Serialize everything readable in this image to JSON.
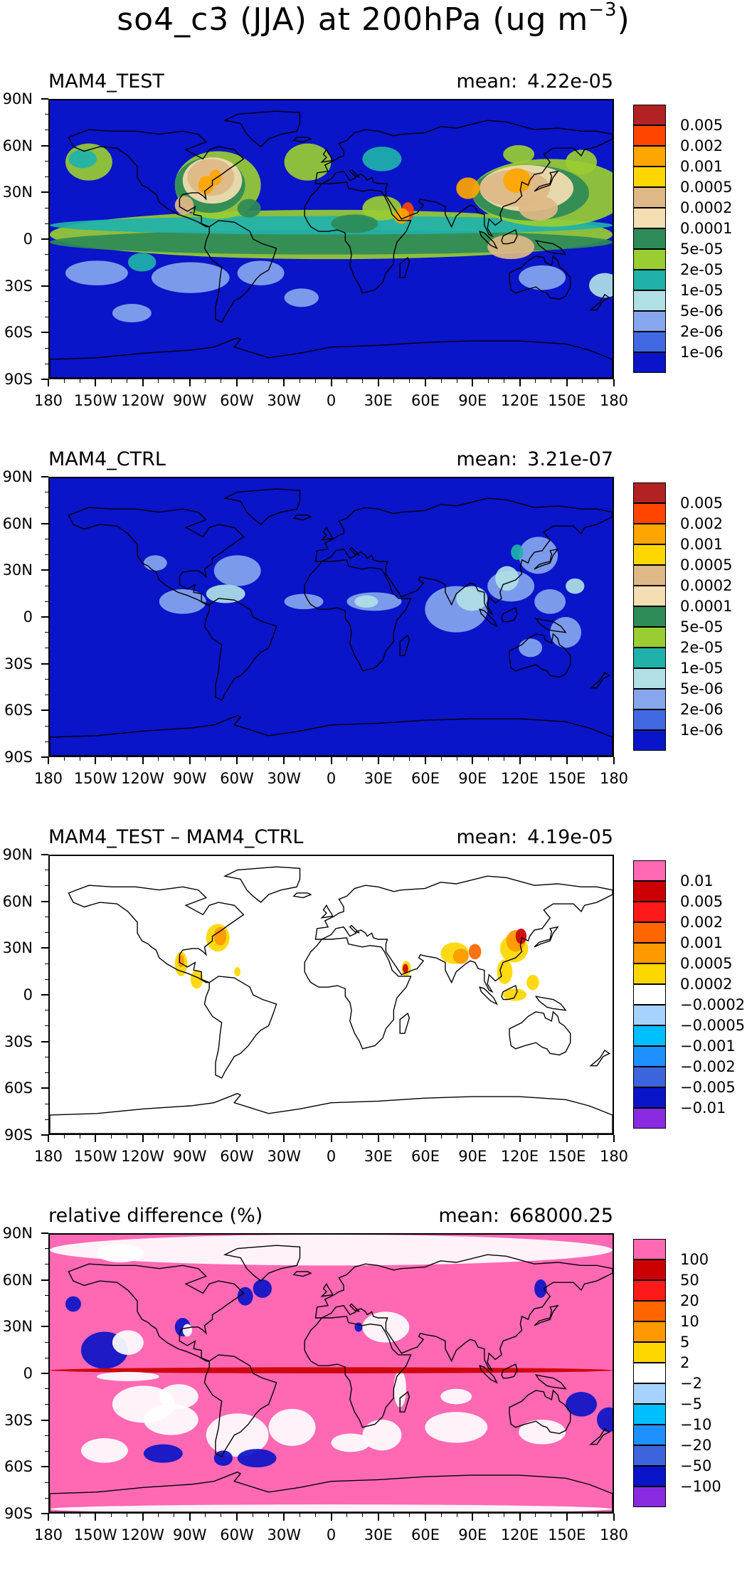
{
  "title": {
    "text": "so4_c3 (JJA) at 200hPa (ug m",
    "superscript": "−3",
    "close": ")"
  },
  "axis_ticks": {
    "x": [
      "180",
      "150W",
      "120W",
      "90W",
      "60W",
      "30W",
      "0",
      "30E",
      "60E",
      "90E",
      "120E",
      "150E",
      "180"
    ],
    "y": [
      "90N",
      "60N",
      "30N",
      "0",
      "30S",
      "60S",
      "90S"
    ]
  },
  "panels": [
    {
      "name": "MAM4_TEST",
      "mean_label": "mean:",
      "mean_value": "4.22e-05",
      "field": "test",
      "background": "#0a14c8",
      "legend": {
        "colors": [
          "#b22222",
          "#ff4500",
          "#ffa500",
          "#ffd700",
          "#deb887",
          "#f5deb3",
          "#2e8b57",
          "#9acd32",
          "#20b2aa",
          "#b0e0e6",
          "#87a6ee",
          "#4169e1",
          "#0a14c8"
        ],
        "labels": [
          "0.005",
          "0.002",
          "0.001",
          "0.0005",
          "0.0002",
          "0.0001",
          "5e-05",
          "2e-05",
          "1e-05",
          "5e-06",
          "2e-06",
          "1e-06"
        ]
      }
    },
    {
      "name": "MAM4_CTRL",
      "mean_label": "mean:",
      "mean_value": "3.21e-07",
      "field": "ctrl",
      "background": "#0a14c8",
      "legend": {
        "colors": [
          "#b22222",
          "#ff4500",
          "#ffa500",
          "#ffd700",
          "#deb887",
          "#f5deb3",
          "#2e8b57",
          "#9acd32",
          "#20b2aa",
          "#b0e0e6",
          "#87a6ee",
          "#4169e1",
          "#0a14c8"
        ],
        "labels": [
          "0.005",
          "0.002",
          "0.001",
          "0.0005",
          "0.0002",
          "0.0001",
          "5e-05",
          "2e-05",
          "1e-05",
          "5e-06",
          "2e-06",
          "1e-06"
        ]
      }
    },
    {
      "name": "MAM4_TEST – MAM4_CTRL",
      "mean_label": "mean:",
      "mean_value": "4.19e-05",
      "field": "diff",
      "background": "#ffffff",
      "legend": {
        "colors": [
          "#ff69b4",
          "#cc0000",
          "#ff1a1a",
          "#ff6600",
          "#ff9900",
          "#ffd700",
          "#ffffff",
          "#a6d2ff",
          "#00bfff",
          "#1e90ff",
          "#3c64dc",
          "#0a14c8",
          "#8a2be2"
        ],
        "labels": [
          "0.01",
          "0.005",
          "0.002",
          "0.001",
          "0.0005",
          "0.0002",
          "−0.0002",
          "−0.0005",
          "−0.001",
          "−0.002",
          "−0.005",
          "−0.01"
        ]
      }
    },
    {
      "name": "relative difference (%)",
      "mean_label": "mean:",
      "mean_value": "668000.25",
      "field": "rel",
      "background": "#ff69b4",
      "legend": {
        "colors": [
          "#ff69b4",
          "#cc0000",
          "#ff1a1a",
          "#ff6600",
          "#ff9900",
          "#ffd700",
          "#ffffff",
          "#a6d2ff",
          "#00bfff",
          "#1e90ff",
          "#3c64dc",
          "#0a14c8",
          "#8a2be2"
        ],
        "labels": [
          "100",
          "50",
          "20",
          "10",
          "5",
          "2",
          "−2",
          "−5",
          "−10",
          "−20",
          "−50",
          "−100"
        ]
      }
    }
  ],
  "chart_data": {
    "type": "heatmap",
    "projection": "cylindrical equidistant, 180W–180E, 90S–90N",
    "xlim": [
      -180,
      180
    ],
    "ylim": [
      -90,
      90
    ],
    "panel_count": 4
  }
}
